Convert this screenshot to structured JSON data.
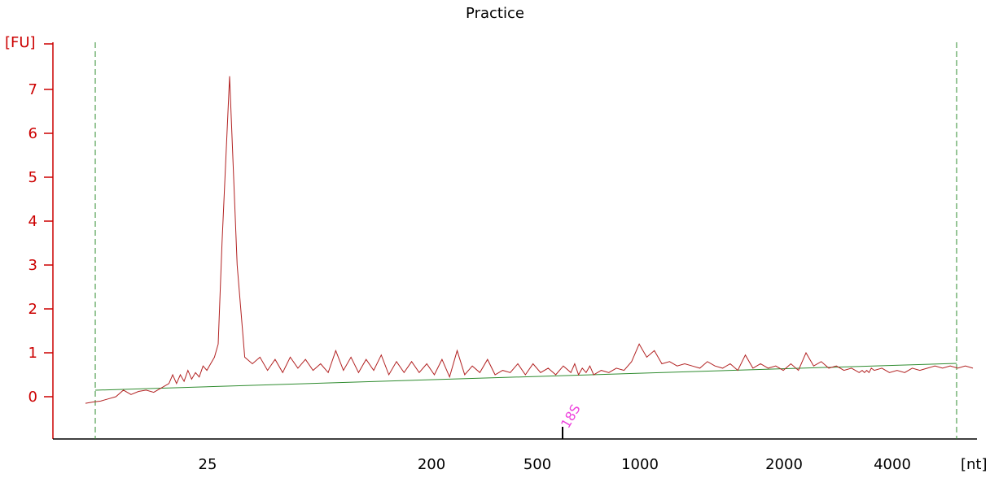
{
  "chart_data": {
    "type": "line",
    "title": "Practice",
    "ylabel": "[FU]",
    "xlabel": "[nt]",
    "yticks": [
      "0",
      "1",
      "2",
      "3",
      "4",
      "5",
      "6",
      "7"
    ],
    "xticks": [
      "25",
      "200",
      "500",
      "1000",
      "2000",
      "4000"
    ],
    "ylim": [
      -1.0,
      8.0
    ],
    "grid": false,
    "colors": {
      "trace": "#b22222",
      "baseline": "#2e8b2e",
      "window": "#2e8b2e",
      "marker": "#ee44dd",
      "axis_y": "#cc0000",
      "axis_x": "#000000"
    },
    "marker": {
      "label": "18S"
    },
    "series": [
      {
        "x": [
          -40,
          -30,
          -20,
          -10,
          0,
          10,
          15,
          20,
          30,
          40,
          50,
          60,
          70,
          75,
          80,
          85,
          90,
          95,
          100,
          105,
          110,
          115,
          120,
          125,
          130,
          135,
          140,
          150,
          160,
          170,
          180,
          190,
          200,
          210,
          220,
          230,
          240,
          250,
          260,
          270,
          280,
          290,
          300,
          310,
          320,
          330,
          340,
          350,
          360,
          370,
          380,
          390,
          400,
          410,
          420,
          430,
          440,
          450,
          460,
          470,
          480,
          490,
          500,
          510,
          520,
          530,
          540,
          550,
          560,
          570,
          580,
          590,
          600,
          605,
          610,
          615,
          620,
          625,
          630,
          640,
          650,
          660,
          670,
          680,
          690,
          700,
          710,
          720,
          730,
          740,
          750,
          760,
          770,
          780,
          790,
          800,
          810,
          820,
          830,
          840,
          850,
          860,
          870,
          880,
          890,
          900,
          910,
          920,
          930,
          940,
          950,
          960,
          970,
          980,
          984,
          987,
          990,
          993,
          996,
          1000,
          1010,
          1020,
          1030,
          1040,
          1050,
          1060,
          1070,
          1080,
          1090,
          1100,
          1110,
          1120,
          1130
        ],
        "y": [
          -0.15,
          -0.12,
          -0.1,
          -0.05,
          0.0,
          0.15,
          0.1,
          0.05,
          0.12,
          0.15,
          0.1,
          0.2,
          0.3,
          0.5,
          0.3,
          0.5,
          0.35,
          0.6,
          0.4,
          0.55,
          0.45,
          0.7,
          0.6,
          0.75,
          0.9,
          1.2,
          3.5,
          7.3,
          3.0,
          0.9,
          0.75,
          0.9,
          0.6,
          0.85,
          0.55,
          0.9,
          0.65,
          0.85,
          0.6,
          0.75,
          0.55,
          1.05,
          0.6,
          0.9,
          0.55,
          0.85,
          0.6,
          0.95,
          0.5,
          0.8,
          0.55,
          0.8,
          0.55,
          0.75,
          0.5,
          0.85,
          0.45,
          1.05,
          0.5,
          0.7,
          0.55,
          0.85,
          0.5,
          0.6,
          0.55,
          0.75,
          0.5,
          0.75,
          0.55,
          0.65,
          0.5,
          0.7,
          0.55,
          0.75,
          0.5,
          0.65,
          0.55,
          0.7,
          0.5,
          0.6,
          0.55,
          0.65,
          0.6,
          0.8,
          1.2,
          0.9,
          1.05,
          0.75,
          0.8,
          0.7,
          0.75,
          0.7,
          0.65,
          0.8,
          0.7,
          0.65,
          0.75,
          0.6,
          0.95,
          0.65,
          0.75,
          0.65,
          0.7,
          0.6,
          0.75,
          0.6,
          1.0,
          0.7,
          0.8,
          0.65,
          0.7,
          0.6,
          0.65,
          0.55,
          0.6,
          0.55,
          0.6,
          0.55,
          0.65,
          0.6,
          0.65,
          0.55,
          0.6,
          0.55,
          0.65,
          0.6,
          0.65,
          0.7,
          0.65,
          0.7,
          0.65,
          0.7,
          0.65
        ]
      }
    ]
  }
}
